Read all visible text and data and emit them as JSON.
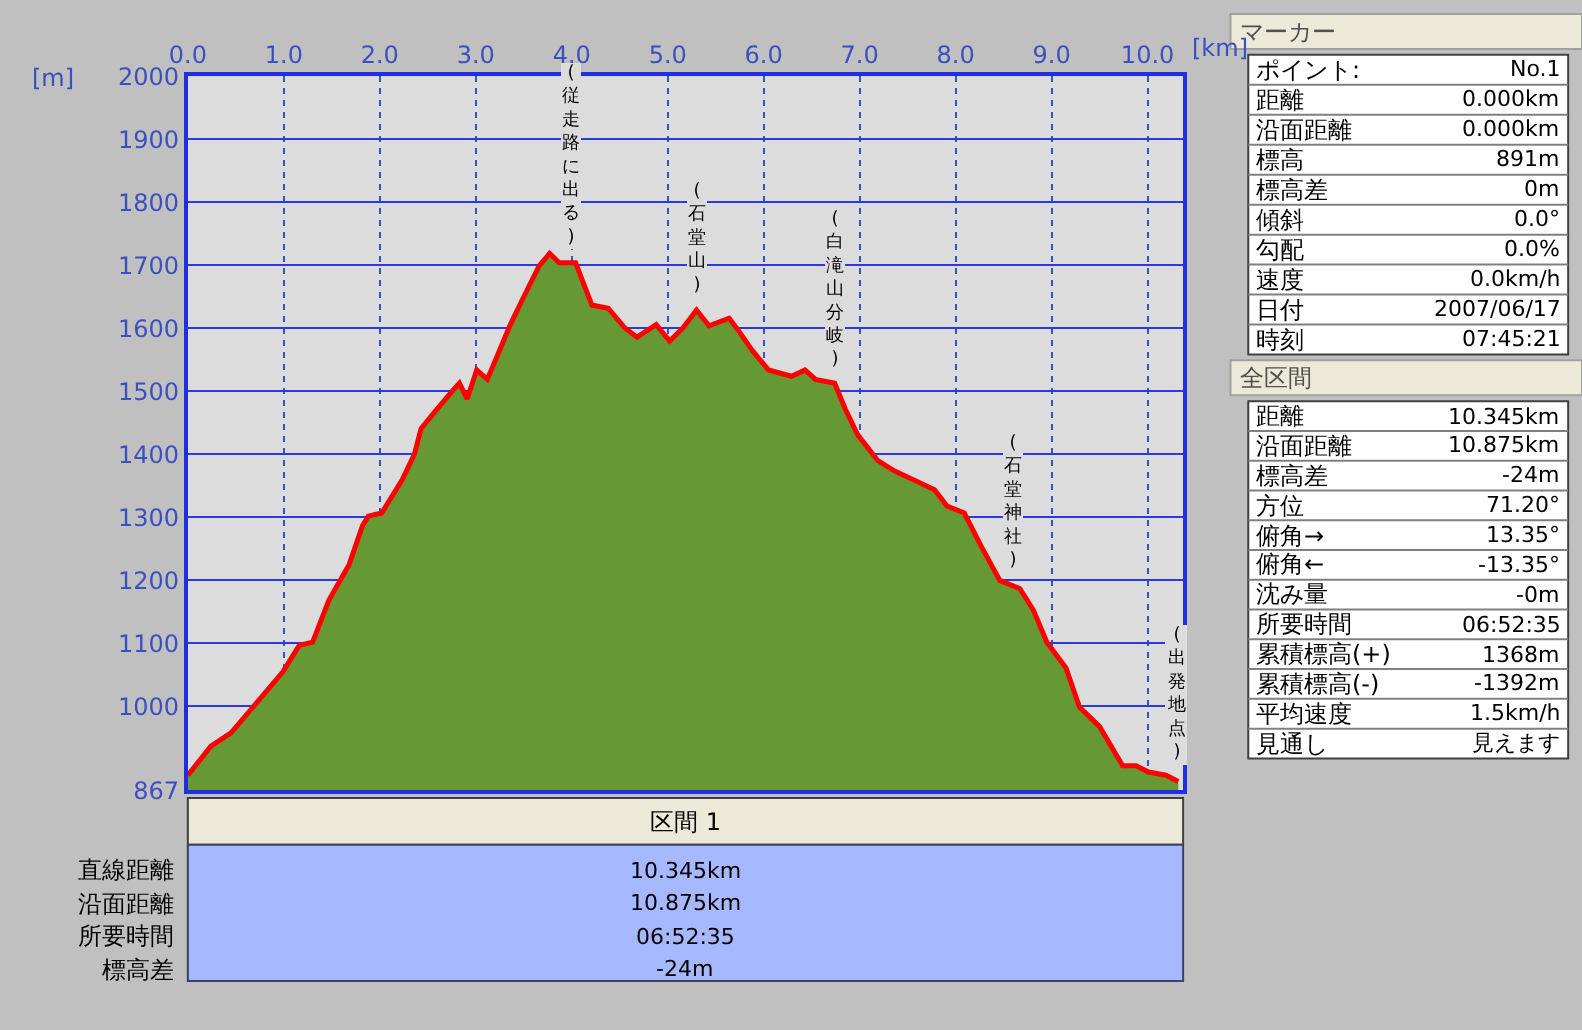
{
  "chart_data": [
    {
      "type": "area",
      "xlabel": "[km]",
      "ylabel": "[m]",
      "x": [
        0,
        0.24,
        0.45,
        0.65,
        0.99,
        1.16,
        1.3,
        1.47,
        1.68,
        1.82,
        1.88,
        2.02,
        2.23,
        2.36,
        2.43,
        2.57,
        2.77,
        2.83,
        2.91,
        3.01,
        3.12,
        3.22,
        3.36,
        3.49,
        3.66,
        3.77,
        3.87,
        4.04,
        4.21,
        4.38,
        4.55,
        4.68,
        4.88,
        5.02,
        5.16,
        5.3,
        5.43,
        5.64,
        5.74,
        5.88,
        6.05,
        6.29,
        6.43,
        6.54,
        6.74,
        6.85,
        6.98,
        7.19,
        7.36,
        7.57,
        7.78,
        7.91,
        8.09,
        8.26,
        8.46,
        8.67,
        8.81,
        8.95,
        9.15,
        9.29,
        9.5,
        9.74,
        9.88,
        10.01,
        10.19,
        10.32
      ],
      "series": [
        {
          "type": "area",
          "color": "#669933",
          "values": [
            891,
            937,
            958,
            994,
            1055,
            1097,
            1102,
            1169,
            1225,
            1287,
            1302,
            1307,
            1359,
            1400,
            1441,
            1467,
            1503,
            1513,
            1488,
            1534,
            1519,
            1555,
            1606,
            1647,
            1699,
            1719,
            1704,
            1704,
            1637,
            1632,
            1601,
            1586,
            1606,
            1580,
            1601,
            1629,
            1604,
            1616,
            1596,
            1565,
            1534,
            1524,
            1534,
            1519,
            1513,
            1472,
            1431,
            1390,
            1374,
            1359,
            1344,
            1318,
            1307,
            1256,
            1200,
            1187,
            1153,
            1102,
            1061,
            999,
            968,
            906,
            906,
            896,
            891,
            881
          ]
        },
        {
          "type": "line",
          "color": "#ff0000",
          "values": [
            891,
            937,
            958,
            994,
            1055,
            1097,
            1102,
            1169,
            1225,
            1287,
            1302,
            1307,
            1359,
            1400,
            1441,
            1467,
            1503,
            1513,
            1488,
            1534,
            1519,
            1555,
            1606,
            1647,
            1699,
            1719,
            1704,
            1704,
            1637,
            1632,
            1601,
            1586,
            1606,
            1580,
            1601,
            1629,
            1604,
            1616,
            1596,
            1565,
            1534,
            1524,
            1534,
            1519,
            1513,
            1472,
            1431,
            1390,
            1374,
            1359,
            1344,
            1318,
            1307,
            1256,
            1200,
            1187,
            1153,
            1102,
            1061,
            999,
            968,
            906,
            906,
            896,
            891,
            881
          ]
        }
      ],
      "xlim": [
        0,
        10.37
      ],
      "xticks": [
        {
          "value": 0,
          "label": "0.0"
        },
        {
          "value": 1,
          "label": "1.0"
        },
        {
          "value": 2,
          "label": "2.0"
        },
        {
          "value": 3,
          "label": "3.0"
        },
        {
          "value": 4,
          "label": "4.0"
        },
        {
          "value": 5,
          "label": "5.0"
        },
        {
          "value": 6,
          "label": "6.0"
        },
        {
          "value": 7,
          "label": "7.0"
        },
        {
          "value": 8,
          "label": "8.0"
        },
        {
          "value": 9,
          "label": "9.0"
        },
        {
          "value": 10,
          "label": "10.0"
        }
      ],
      "ylim": [
        867,
        2000
      ],
      "yticks": [
        867,
        1000,
        1100,
        1200,
        1300,
        1400,
        1500,
        1600,
        1700,
        1800,
        1900,
        2000
      ],
      "grid": true,
      "annotations": [
        {
          "text": "(従走路に出る)",
          "x": 4.0,
          "y": 1705
        },
        {
          "text": "(石堂山)",
          "x": 5.3,
          "y": 1629
        },
        {
          "text": "(白滝山分岐)",
          "x": 6.75,
          "y": 1513
        },
        {
          "text": "(石堂神社)",
          "x": 8.6,
          "y": 1190
        },
        {
          "text": "(出発地点)",
          "x": 10.3,
          "y": 885
        }
      ]
    },
    {
      "type": "other",
      "title": "区間 1",
      "annotations": [
        "直線距離",
        "10.345km",
        "沿面距離",
        "10.875km",
        "所要時間",
        "06:52:35",
        "標高差",
        "-24m"
      ]
    },
    {
      "type": "other",
      "title": "マーカー",
      "annotations": [
        "ポイント:",
        "No.1",
        "距離",
        "0.000km",
        "沿面距離",
        "0.000km",
        "標高",
        "891m",
        "標高差",
        "0m",
        "傾斜",
        "0.0°",
        "勾配",
        "0.0%",
        "速度",
        "0.0km/h",
        "日付",
        "2007/06/17",
        "時刻",
        "07:45:21"
      ]
    },
    {
      "type": "other",
      "title": "全区間",
      "annotations": [
        "距離",
        "10.345km",
        "沿面距離",
        "10.875km",
        "標高差",
        "-24m",
        "方位",
        "71.20°",
        "俯角→",
        "13.35°",
        "俯角←",
        "-13.35°",
        "沈み量",
        "-0m",
        "所要時間",
        "06:52:35",
        "累積標高(+)",
        "1368m",
        "累積標高(-)",
        "-1392m",
        "平均速度",
        "1.5km/h",
        "見通し",
        "見えます"
      ]
    }
  ]
}
